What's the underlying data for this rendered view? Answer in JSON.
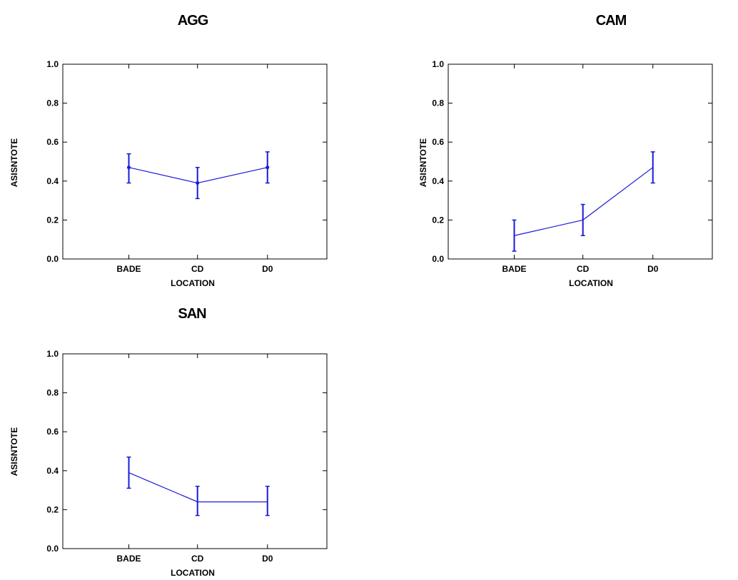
{
  "chart_data": [
    {
      "type": "line",
      "title": "AGG",
      "xlabel": "LOCATION",
      "ylabel": "ASISNTOTE",
      "categories": [
        "BADE",
        "CD",
        "D0"
      ],
      "series": [
        {
          "values": [
            0.47,
            0.39,
            0.47
          ],
          "error_low": [
            0.39,
            0.31,
            0.39
          ],
          "error_high": [
            0.54,
            0.47,
            0.55
          ],
          "markers": true
        }
      ],
      "yticks": [
        "0.0",
        "0.2",
        "0.4",
        "0.6",
        "0.8",
        "1.0"
      ],
      "ylim": [
        0,
        1
      ],
      "grid": false,
      "color": "#1a1ad8"
    },
    {
      "type": "line",
      "title": "CAM",
      "xlabel": "LOCATION",
      "ylabel": "ASISNTOTE",
      "categories": [
        "BADE",
        "CD",
        "D0"
      ],
      "series": [
        {
          "values": [
            0.12,
            0.2,
            0.47
          ],
          "error_low": [
            0.04,
            0.12,
            0.39
          ],
          "error_high": [
            0.2,
            0.28,
            0.55
          ],
          "markers": false
        }
      ],
      "yticks": [
        "0.0",
        "0.2",
        "0.4",
        "0.6",
        "0.8",
        "1.0"
      ],
      "ylim": [
        0,
        1
      ],
      "grid": false,
      "color": "#1a1ad8"
    },
    {
      "type": "line",
      "title": "SAN",
      "xlabel": "LOCATION",
      "ylabel": "ASISNTOTE",
      "categories": [
        "BADE",
        "CD",
        "D0"
      ],
      "series": [
        {
          "values": [
            0.39,
            0.24,
            0.24
          ],
          "error_low": [
            0.31,
            0.17,
            0.17
          ],
          "error_high": [
            0.47,
            0.32,
            0.32
          ],
          "markers": false
        }
      ],
      "yticks": [
        "0.0",
        "0.2",
        "0.4",
        "0.6",
        "0.8",
        "1.0"
      ],
      "ylim": [
        0,
        1
      ],
      "grid": false,
      "color": "#1a1ad8"
    }
  ]
}
